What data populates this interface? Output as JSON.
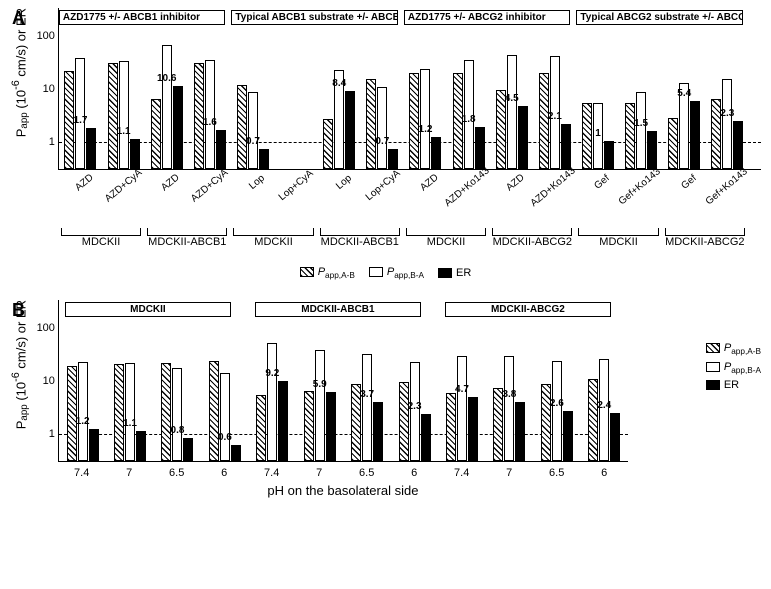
{
  "figure_width": 771,
  "figure_height": 589,
  "colors": {
    "bg": "#ffffff",
    "axis": "#000000",
    "hatch_fg": "#000000",
    "hatch_bg": "#ffffff",
    "open_fill": "#ffffff",
    "open_border": "#000000",
    "solid": "#000000",
    "dashed_ref": "#000000"
  },
  "typography": {
    "axis_label_fontsize": 13,
    "tick_fontsize": 11,
    "value_fontsize": 10,
    "panel_label_fontsize": 18,
    "subgroup_fontsize": 10,
    "font_family": "Arial"
  },
  "legend": {
    "items": [
      {
        "key": "hatch",
        "label_html": "<span class='ital'>P</span><sub>app,A-B</sub>"
      },
      {
        "key": "open",
        "label_html": "<span class='ital'>P</span><sub>app,B-A</sub>"
      },
      {
        "key": "solid",
        "label_html": "ER"
      }
    ]
  },
  "yaxis": {
    "label_html": "P<sub>app</sub> (10<sup>-6</sup> cm/s) or ER",
    "scale": "log",
    "ticks": [
      100,
      10,
      1
    ],
    "range": [
      0.3,
      120
    ],
    "dashed_reference": 1
  },
  "panelA": {
    "label": "A",
    "subgroup_headers": [
      "AZD1775 +/- ABCB1 inhibitor",
      "Typical ABCB1 substrate +/- ABCB1 inhibitor",
      "AZD1775 +/- ABCG2 inhibitor",
      "Typical ABCG2 substrate +/- ABCG2 inhibitor"
    ],
    "cell_lines": [
      "MDCKII",
      "MDCKII-ABCB1",
      "MDCKII",
      "MDCKII-ABCB1",
      "MDCKII",
      "MDCKII-ABCG2",
      "MDCKII",
      "MDCKII-ABCG2"
    ],
    "groups": [
      {
        "x": "AZD",
        "ab": 20,
        "ba": 35,
        "er": 1.7
      },
      {
        "x": "AZD+CyA",
        "ab": 28,
        "ba": 30,
        "er": 1.1
      },
      {
        "x": "AZD",
        "ab": 6,
        "ba": 60,
        "er": 10.6
      },
      {
        "x": "AZD+CyA",
        "ab": 28,
        "ba": 32,
        "er": 1.6
      },
      {
        "x": "Lop",
        "ab": 11,
        "ba": 8,
        "er": 0.7
      },
      {
        "x": "Lop+CyA",
        "ab": null,
        "ba": null,
        "er": null
      },
      {
        "x": "Lop",
        "ab": 2.5,
        "ba": 21,
        "er": 8.4
      },
      {
        "x": "Lop+CyA",
        "ab": 14,
        "ba": 10,
        "er": 0.7
      },
      {
        "x": "AZD",
        "ab": 18,
        "ba": 22,
        "er": 1.2
      },
      {
        "x": "AZD+Ko143",
        "ab": 18,
        "ba": 32,
        "er": 1.8
      },
      {
        "x": "AZD",
        "ab": 9,
        "ba": 40,
        "er": 4.5
      },
      {
        "x": "AZD+Ko143",
        "ab": 18,
        "ba": 38,
        "er": 2.1
      },
      {
        "x": "Gef",
        "ab": 5,
        "ba": 5,
        "er": 1.0
      },
      {
        "x": "Gef+Ko143",
        "ab": 5,
        "ba": 8,
        "er": 1.5
      },
      {
        "x": "Gef",
        "ab": 2.7,
        "ba": 12,
        "er": 5.4
      },
      {
        "x": "Gef+Ko143",
        "ab": 6,
        "ba": 14,
        "er": 2.3
      }
    ],
    "subgroup_spans": [
      [
        0,
        3
      ],
      [
        4,
        7
      ],
      [
        8,
        11
      ],
      [
        12,
        15
      ]
    ],
    "cellline_spans": [
      [
        0,
        1
      ],
      [
        2,
        3
      ],
      [
        4,
        5
      ],
      [
        6,
        7
      ],
      [
        8,
        9
      ],
      [
        10,
        11
      ],
      [
        12,
        13
      ],
      [
        14,
        15
      ]
    ]
  },
  "panelB": {
    "label": "B",
    "xlabel": "pH on the basolateral side",
    "cell_lines": [
      "MDCKII",
      "MDCKII-ABCB1",
      "MDCKII-ABCG2"
    ],
    "ph_values": [
      7.4,
      7,
      6.5,
      6
    ],
    "groups": [
      {
        "cell": "MDCKII",
        "ph": 7.4,
        "ab": 18,
        "ba": 21,
        "er": 1.2
      },
      {
        "cell": "MDCKII",
        "ph": 7,
        "ab": 19,
        "ba": 20,
        "er": 1.1
      },
      {
        "cell": "MDCKII",
        "ph": 6.5,
        "ab": 20,
        "ba": 16,
        "er": 0.8
      },
      {
        "cell": "MDCKII",
        "ph": 6,
        "ab": 22,
        "ba": 13,
        "er": 0.6
      },
      {
        "cell": "MDCKII-ABCB1",
        "ph": 7.4,
        "ab": 5,
        "ba": 48,
        "er": 9.2
      },
      {
        "cell": "MDCKII-ABCB1",
        "ph": 7,
        "ab": 6,
        "ba": 35,
        "er": 5.9
      },
      {
        "cell": "MDCKII-ABCB1",
        "ph": 6.5,
        "ab": 8,
        "ba": 29,
        "er": 3.7
      },
      {
        "cell": "MDCKII-ABCB1",
        "ph": 6,
        "ab": 9,
        "ba": 21,
        "er": 2.3
      },
      {
        "cell": "MDCKII-ABCG2",
        "ph": 7.4,
        "ab": 5.5,
        "ba": 27,
        "er": 4.7
      },
      {
        "cell": "MDCKII-ABCG2",
        "ph": 7,
        "ab": 7,
        "ba": 27,
        "er": 3.8
      },
      {
        "cell": "MDCKII-ABCG2",
        "ph": 6.5,
        "ab": 8,
        "ba": 22,
        "er": 2.6
      },
      {
        "cell": "MDCKII-ABCG2",
        "ph": 6,
        "ab": 10,
        "ba": 24,
        "er": 2.4
      }
    ],
    "cellline_spans": [
      [
        0,
        3
      ],
      [
        4,
        7
      ],
      [
        8,
        11
      ]
    ]
  }
}
